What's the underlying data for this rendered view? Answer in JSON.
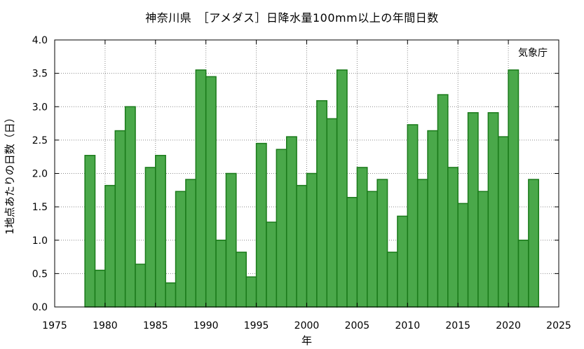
{
  "chart_data": {
    "type": "bar",
    "title": "神奈川県　［アメダス］日降水量100mm以上の年間日数",
    "xlabel": "年",
    "ylabel": "1地点あたりの日数（日）",
    "annotation": "気象庁",
    "xlim": [
      1975,
      2025
    ],
    "ylim": [
      0.0,
      4.0
    ],
    "x_ticks": [
      "1975",
      "1980",
      "1985",
      "1990",
      "1995",
      "2000",
      "2005",
      "2010",
      "2015",
      "2020",
      "2025"
    ],
    "y_ticks": [
      "0.0",
      "0.5",
      "1.0",
      "1.5",
      "2.0",
      "2.5",
      "3.0",
      "3.5",
      "4.0"
    ],
    "grid": true,
    "bar_color": "#4aa84a",
    "bar_edge_color": "#1a7a1a",
    "x": [
      1979,
      1980,
      1981,
      1982,
      1983,
      1984,
      1985,
      1986,
      1987,
      1988,
      1989,
      1990,
      1991,
      1992,
      1993,
      1994,
      1995,
      1996,
      1997,
      1998,
      1999,
      2000,
      2001,
      2002,
      2003,
      2004,
      2005,
      2006,
      2007,
      2008,
      2009,
      2010,
      2011,
      2012,
      2013,
      2014,
      2015,
      2016,
      2017,
      2018,
      2019,
      2020,
      2021,
      2022,
      2023
    ],
    "values": [
      2.27,
      0.55,
      1.82,
      2.64,
      3.0,
      0.64,
      2.09,
      2.27,
      0.36,
      1.73,
      1.91,
      3.55,
      3.45,
      1.0,
      2.0,
      0.82,
      0.45,
      2.45,
      1.27,
      2.36,
      2.55,
      1.82,
      2.0,
      3.09,
      2.82,
      3.55,
      1.64,
      2.09,
      1.73,
      1.91,
      0.82,
      1.36,
      2.73,
      1.91,
      2.64,
      3.18,
      2.09,
      1.55,
      2.91,
      1.73,
      2.91,
      2.55,
      3.55,
      1.0,
      1.91
    ]
  }
}
